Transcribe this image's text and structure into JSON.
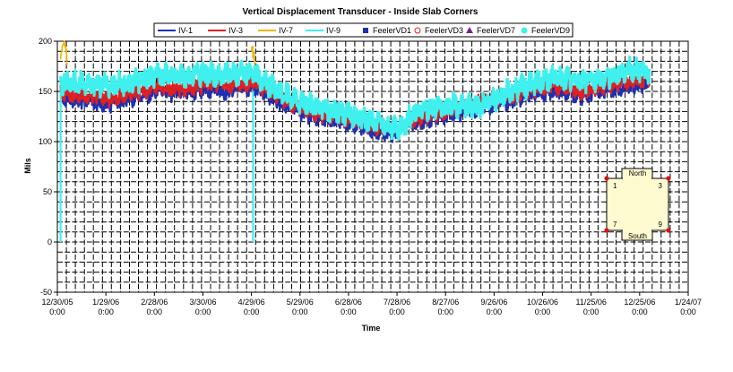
{
  "chart_data": {
    "type": "line",
    "title": "Vertical Displacement Transducer - Inside Slab Corners",
    "xlabel": "Time",
    "ylabel": "Mils",
    "ylim": [
      -50,
      200
    ],
    "yticks": [
      -50,
      0,
      50,
      100,
      150,
      200
    ],
    "xlim": [
      "2005-12-30",
      "2007-01-24"
    ],
    "xtick_dates": [
      "2005-12-30",
      "2006-01-29",
      "2006-02-28",
      "2006-03-30",
      "2006-04-29",
      "2006-05-29",
      "2006-06-28",
      "2006-07-28",
      "2006-08-27",
      "2006-09-26",
      "2006-10-26",
      "2006-11-25",
      "2006-12-25",
      "2007-01-24"
    ],
    "xtick_labels": [
      [
        "12/30/05",
        "0:00"
      ],
      [
        "1/29/06",
        "0:00"
      ],
      [
        "2/28/06",
        "0:00"
      ],
      [
        "3/30/06",
        "0:00"
      ],
      [
        "4/29/06",
        "0:00"
      ],
      [
        "5/29/06",
        "0:00"
      ],
      [
        "6/28/06",
        "0:00"
      ],
      [
        "7/28/06",
        "0:00"
      ],
      [
        "8/27/06",
        "0:00"
      ],
      [
        "9/26/06",
        "0:00"
      ],
      [
        "10/26/06",
        "0:00"
      ],
      [
        "11/25/06",
        "0:00"
      ],
      [
        "12/25/06",
        "0:00"
      ],
      [
        "1/24/07",
        "0:00"
      ]
    ],
    "grid": true,
    "legend_position": "top",
    "series": [
      {
        "name": "IV-1",
        "kind": "line",
        "color": "#1f2fb0",
        "x": [
          "2006-01-01",
          "2006-01-15",
          "2006-02-01",
          "2006-02-15",
          "2006-03-01",
          "2006-03-15",
          "2006-04-01",
          "2006-04-15",
          "2006-05-01",
          "2006-05-15",
          "2006-06-01",
          "2006-06-15",
          "2006-07-01",
          "2006-07-15",
          "2006-07-28",
          "2006-08-05",
          "2006-10-05",
          "2006-10-20",
          "2006-11-05",
          "2006-11-20",
          "2006-12-05",
          "2006-12-20",
          "2006-12-31"
        ],
        "y": [
          145,
          140,
          138,
          142,
          150,
          148,
          152,
          150,
          155,
          140,
          128,
          122,
          118,
          110,
          108,
          118,
          140,
          148,
          150,
          145,
          152,
          155,
          158
        ]
      },
      {
        "name": "IV-3",
        "kind": "line",
        "color": "#e02020",
        "x": [
          "2006-01-01",
          "2006-01-15",
          "2006-02-01",
          "2006-02-15",
          "2006-03-01",
          "2006-03-15",
          "2006-04-01",
          "2006-04-15",
          "2006-05-01",
          "2006-05-15",
          "2006-06-01",
          "2006-06-15",
          "2006-07-01",
          "2006-07-15",
          "2006-07-28",
          "2006-08-05",
          "2006-10-05",
          "2006-10-20",
          "2006-11-05",
          "2006-11-20",
          "2006-12-05",
          "2006-12-20",
          "2006-12-31"
        ],
        "y": [
          150,
          145,
          143,
          147,
          155,
          152,
          157,
          155,
          160,
          145,
          132,
          126,
          122,
          114,
          112,
          122,
          145,
          152,
          155,
          150,
          157,
          160,
          162
        ]
      },
      {
        "name": "IV-7",
        "kind": "line",
        "color": "#f0b400",
        "x": [
          "2006-01-01",
          "2006-01-03",
          "2006-01-05",
          "2006-04-29",
          "2006-05-01"
        ],
        "y": [
          190,
          200,
          185,
          200,
          175
        ]
      },
      {
        "name": "IV-9",
        "kind": "line",
        "color": "#3ff0ee",
        "x": [
          "2006-01-01",
          "2006-01-15",
          "2006-02-01",
          "2006-02-15",
          "2006-03-01",
          "2006-03-15",
          "2006-04-01",
          "2006-04-15",
          "2006-05-01",
          "2006-05-15",
          "2006-06-01",
          "2006-06-15",
          "2006-07-01",
          "2006-07-15",
          "2006-07-28",
          "2006-08-05",
          "2006-08-15",
          "2006-09-01",
          "2006-09-15",
          "2006-10-05",
          "2006-10-20",
          "2006-11-05",
          "2006-11-20",
          "2006-12-05",
          "2006-12-20",
          "2006-12-31"
        ],
        "y": [
          160,
          158,
          156,
          160,
          166,
          164,
          168,
          166,
          168,
          150,
          138,
          132,
          126,
          118,
          112,
          124,
          134,
          136,
          134,
          150,
          158,
          165,
          158,
          165,
          172,
          170
        ]
      },
      {
        "name": "FeelerVD1",
        "kind": "marker",
        "marker": "square-filled",
        "color": "#1f2fb0",
        "x": [],
        "y": []
      },
      {
        "name": "FeelerVD3",
        "kind": "marker",
        "marker": "circle-open",
        "color": "#e02020",
        "x": [],
        "y": []
      },
      {
        "name": "FeelerVD7",
        "kind": "marker",
        "marker": "triangle-filled",
        "color": "#7a1f8a",
        "x": [],
        "y": []
      },
      {
        "name": "FeelerVD9",
        "kind": "marker",
        "marker": "circle-filled",
        "color": "#3ff0ee",
        "x": [],
        "y": []
      }
    ],
    "annotations": [
      {
        "kind": "drop",
        "x": "2006-01-01",
        "y_from": 150,
        "y_to": 0,
        "color": "#3ff0ee"
      },
      {
        "kind": "drop",
        "x": "2006-04-30",
        "y_from": 150,
        "y_to": 0,
        "color": "#3ff0ee"
      }
    ],
    "inset": {
      "top_label": "North",
      "bottom_label": "South",
      "corners": [
        "1",
        "3",
        "7",
        "9"
      ],
      "fill": "#fffbd0",
      "corner_color": "#e01010"
    }
  }
}
